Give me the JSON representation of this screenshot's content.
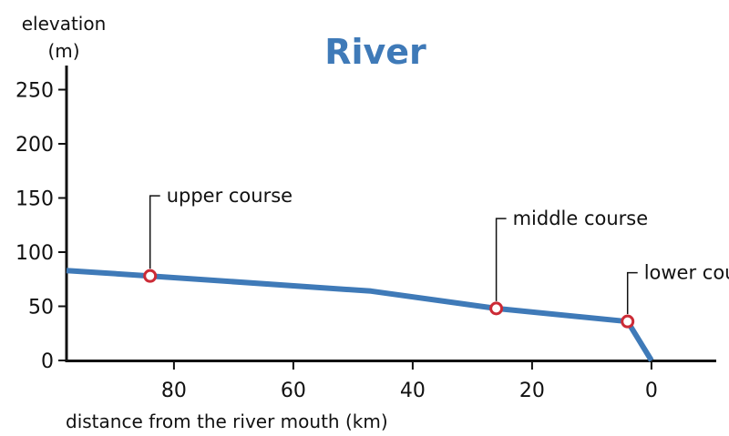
{
  "chart_data": {
    "type": "line",
    "title": "River",
    "ylabel_line1": "elevation",
    "ylabel_line2": "(m)",
    "xlabel": "distance from the river mouth (km)",
    "xlim": [
      98,
      -12
    ],
    "ylim": [
      0,
      265
    ],
    "x_axis_reversed": true,
    "y_ticks": [
      0,
      50,
      100,
      150,
      200,
      250
    ],
    "x_ticks": [
      80,
      60,
      40,
      20,
      0
    ],
    "grid": false,
    "series": [
      {
        "color": "#3f7ab8",
        "points": [
          {
            "x": 98,
            "y": 83
          },
          {
            "x": 84,
            "y": 78
          },
          {
            "x": 47,
            "y": 64
          },
          {
            "x": 26,
            "y": 48
          },
          {
            "x": 4,
            "y": 36
          },
          {
            "x": 0,
            "y": 0
          }
        ]
      }
    ],
    "annotations": [
      {
        "label": "upper course",
        "x": 84,
        "y": 78,
        "label_y": 152
      },
      {
        "label": "middle course",
        "x": 26,
        "y": 48,
        "label_y": 131
      },
      {
        "label": "lower course",
        "x": 4,
        "y": 36,
        "label_y": 81
      }
    ],
    "colors": {
      "line": "#3f7ab8",
      "title": "#3f7ab8",
      "marker_edge": "#cc2b36",
      "marker_fill": "#ffffff",
      "axis": "#111111"
    }
  }
}
